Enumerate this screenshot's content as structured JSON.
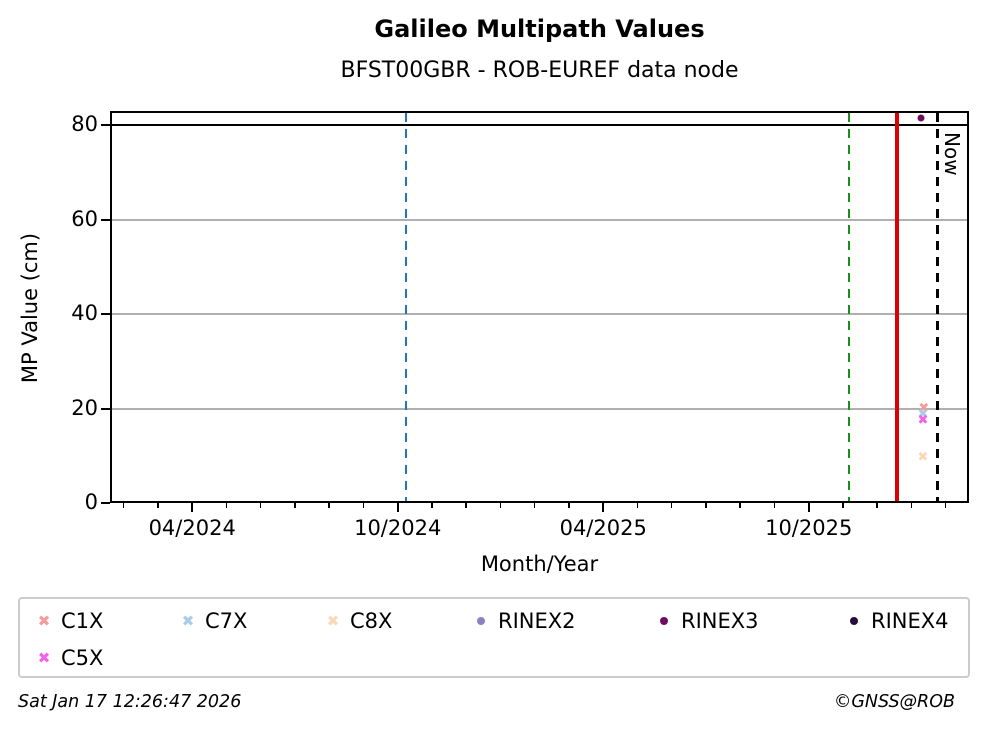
{
  "title": "Galileo Multipath Values",
  "subtitle": "BFST00GBR - ROB-EUREF data node",
  "footer": {
    "timestamp": "Sat Jan 17 12:26:47 2026",
    "copyright": "©GNSS@ROB"
  },
  "chart_data": {
    "type": "scatter",
    "title": "Galileo Multipath Values",
    "subtitle": "BFST00GBR - ROB-EUREF data node",
    "xlabel": "Month/Year",
    "ylabel": "MP Value (cm)",
    "xlim": [
      2024.05,
      2026.14
    ],
    "ylim": [
      0,
      83
    ],
    "yticks": [
      0,
      20,
      40,
      60,
      80
    ],
    "ygrid": [
      20,
      40,
      60
    ],
    "grid_color": "#b0b0b0",
    "threshold_line": {
      "y": 80,
      "color": "#000000"
    },
    "xticks_major": [
      {
        "x": 2024.25,
        "label": "04/2024"
      },
      {
        "x": 2024.75,
        "label": "10/2024"
      },
      {
        "x": 2025.25,
        "label": "04/2025"
      },
      {
        "x": 2025.75,
        "label": "10/2025"
      }
    ],
    "xticks_minor": {
      "first": 2024.0833,
      "step": 0.083333,
      "last": 2026.09
    },
    "vlines": [
      {
        "name": "vline-blue-dashed",
        "x": 2024.77,
        "color": "#1f77b4",
        "style": "dashed",
        "width": 2.5
      },
      {
        "name": "vline-green-dashed",
        "x": 2025.848,
        "color": "#149414",
        "style": "dashed",
        "width": 2.5
      },
      {
        "name": "vline-red-solid",
        "x": 2025.965,
        "color": "#dd0000",
        "style": "solid",
        "width": 3.5
      },
      {
        "name": "vline-now",
        "x": 2026.063,
        "color": "#000000",
        "style": "dashed",
        "width": 2.5,
        "label": "Now"
      }
    ],
    "series": [
      {
        "name": "C1X",
        "marker": "x",
        "color": "#f29c9c",
        "points": [
          [
            2026.03,
            19.9
          ]
        ]
      },
      {
        "name": "C7X",
        "marker": "x",
        "color": "#a9cbe9",
        "points": [
          [
            2026.028,
            18.6
          ]
        ]
      },
      {
        "name": "C8X",
        "marker": "x",
        "color": "#f9d8b7",
        "points": [
          [
            2026.028,
            9.5
          ]
        ]
      },
      {
        "name": "RINEX2",
        "marker": "dot",
        "color": "#8d80c5",
        "points": []
      },
      {
        "name": "RINEX3",
        "marker": "dot",
        "color": "#6c0e60",
        "points": [
          [
            2026.024,
            81.5
          ]
        ]
      },
      {
        "name": "RINEX4",
        "marker": "dot",
        "color": "#260b3d",
        "points": []
      },
      {
        "name": "C5X",
        "marker": "x",
        "color": "#f161ed",
        "points": [
          [
            2026.028,
            17.3
          ]
        ]
      }
    ],
    "legend_order": [
      "C1X",
      "C7X",
      "C8X",
      "RINEX2",
      "RINEX3",
      "RINEX4",
      "C5X"
    ],
    "legend_position": "below"
  }
}
